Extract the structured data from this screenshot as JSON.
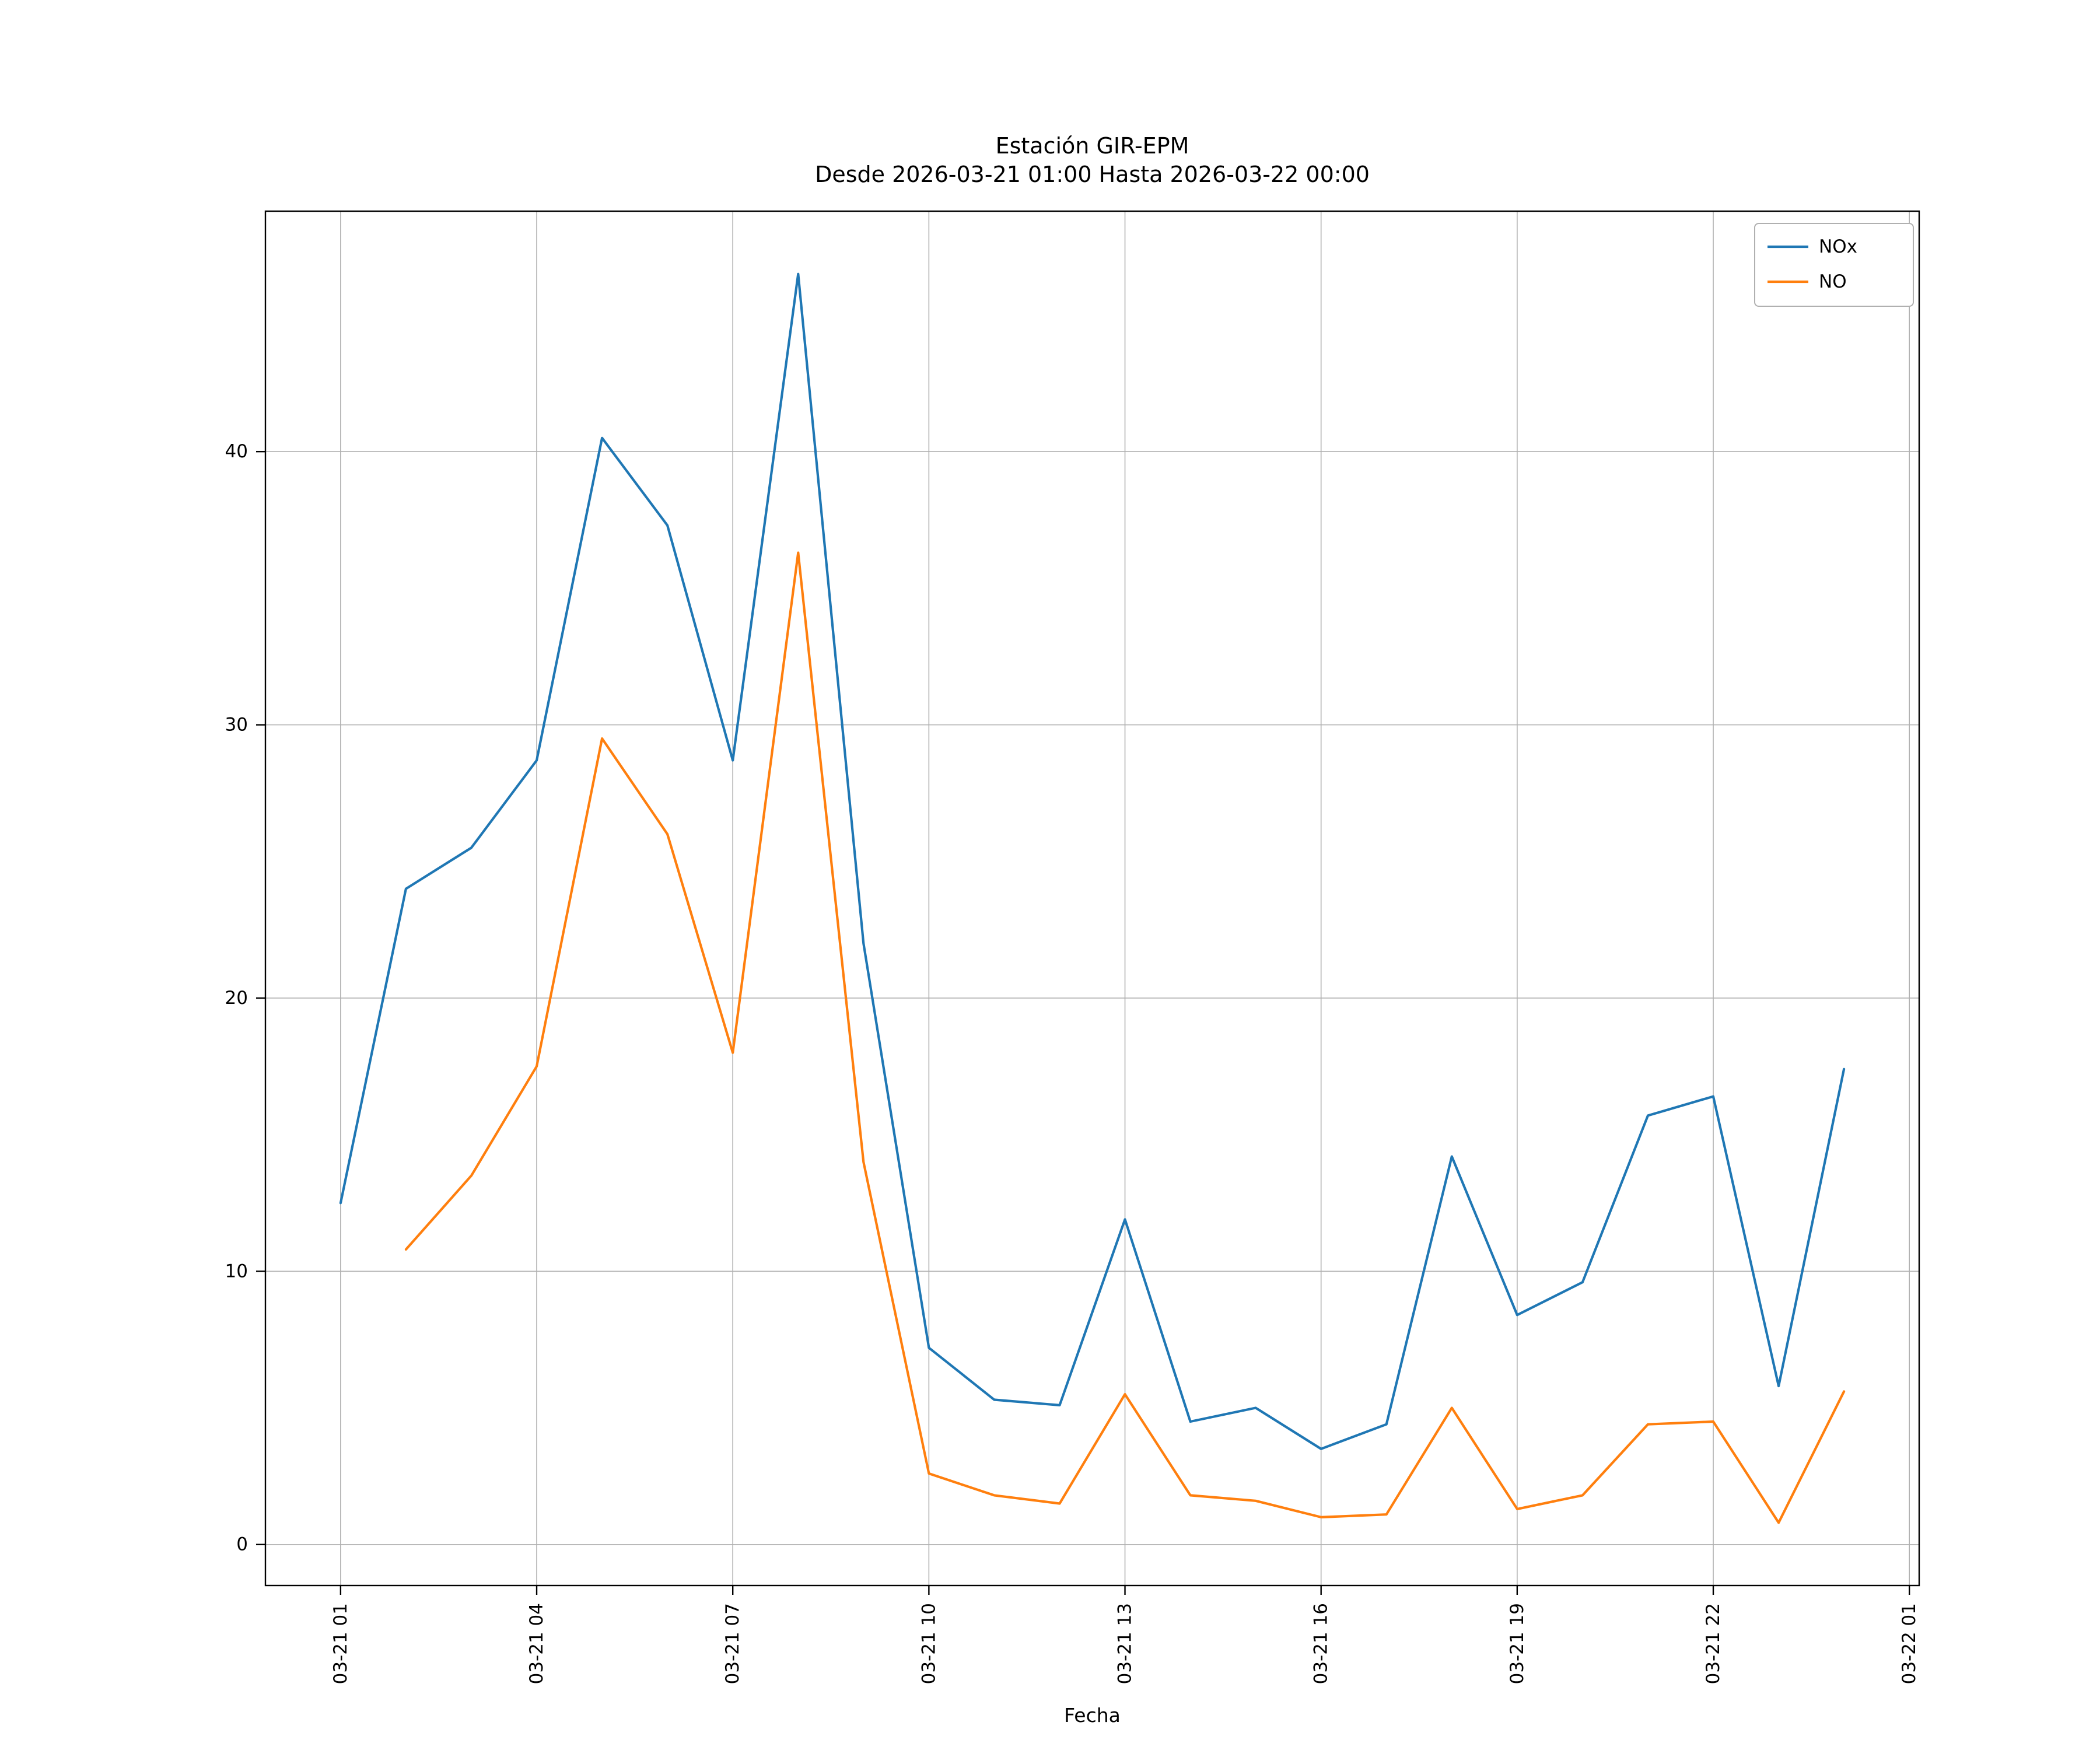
{
  "chart": {
    "title_line1": "Estación GIR-EPM",
    "title_line2": "Desde 2026-03-21 01:00 Hasta 2026-03-22 00:00",
    "xlabel": "Fecha"
  },
  "chart_data": {
    "type": "line",
    "title": "Estación GIR-EPM\nDesde 2026-03-21 01:00 Hasta 2026-03-22 00:00",
    "xlabel": "Fecha",
    "ylabel": "",
    "grid": true,
    "legend_position": "upper right",
    "x_hours": [
      1,
      2,
      3,
      4,
      5,
      6,
      7,
      8,
      9,
      10,
      11,
      12,
      13,
      14,
      15,
      16,
      17,
      18,
      19,
      20,
      21,
      22,
      23,
      24
    ],
    "x_tick_hours": [
      1,
      4,
      7,
      10,
      13,
      16,
      19,
      22,
      25
    ],
    "x_tick_labels": [
      "03-21 01",
      "03-21 04",
      "03-21 07",
      "03-21 10",
      "03-21 13",
      "03-21 16",
      "03-21 19",
      "03-21 22",
      "03-22 01"
    ],
    "y_ticks": [
      0,
      10,
      20,
      30,
      40
    ],
    "xlim": [
      -0.15,
      25.15
    ],
    "ylim": [
      -1.5,
      48.8
    ],
    "colors": {
      "NOx": "#1f77b4",
      "NO": "#ff7f0e",
      "grid": "#b0b0b0",
      "spine": "#000000"
    },
    "series": [
      {
        "name": "NOx",
        "color": "#1f77b4",
        "values": [
          12.5,
          24.0,
          25.5,
          28.7,
          40.5,
          37.3,
          28.7,
          46.5,
          22.0,
          7.2,
          5.3,
          5.1,
          11.9,
          4.5,
          5.0,
          3.5,
          4.4,
          14.2,
          8.4,
          9.6,
          15.7,
          16.4,
          5.8,
          17.4
        ]
      },
      {
        "name": "NO",
        "color": "#ff7f0e",
        "values": [
          null,
          10.8,
          13.5,
          17.5,
          29.5,
          26.0,
          18.0,
          36.3,
          14.0,
          2.6,
          1.8,
          1.5,
          5.5,
          1.8,
          1.6,
          1.0,
          1.1,
          5.0,
          1.3,
          1.8,
          4.4,
          4.5,
          0.8,
          5.6
        ]
      }
    ]
  }
}
